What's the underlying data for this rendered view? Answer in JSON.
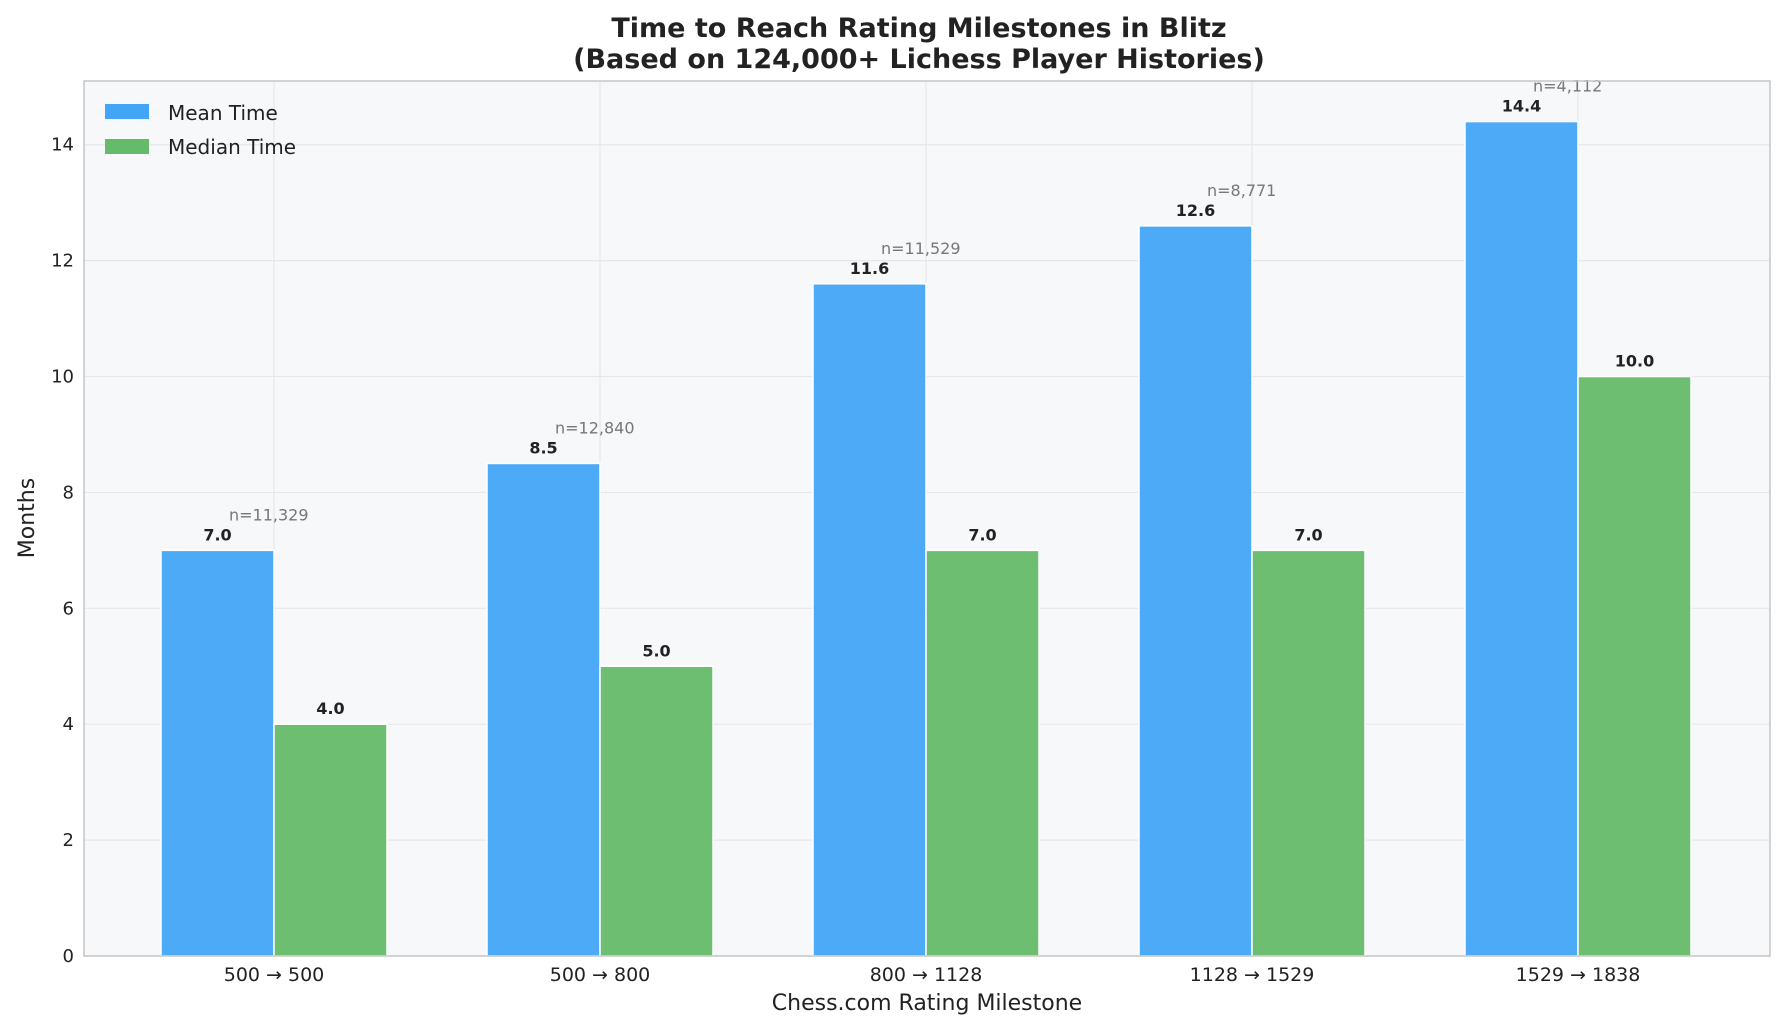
{
  "chart_data": {
    "type": "bar",
    "title_lines": [
      "Time to Reach Rating Milestones in Blitz",
      "(Based on 124,000+ Lichess Player Histories)"
    ],
    "xlabel": "Chess.com Rating Milestone",
    "ylabel": "Months",
    "categories": [
      "500 → 500",
      "500 → 800",
      "800 → 1128",
      "1128 → 1529",
      "1529 → 1838"
    ],
    "series": [
      {
        "name": "Mean Time",
        "color": "#42a5f5",
        "values": [
          7.0,
          8.5,
          11.6,
          12.6,
          14.4
        ]
      },
      {
        "name": "Median Time",
        "color": "#66bb6a",
        "values": [
          4.0,
          5.0,
          7.0,
          7.0,
          10.0
        ]
      }
    ],
    "value_labels": [
      [
        "7.0",
        "8.5",
        "11.6",
        "12.6",
        "14.4"
      ],
      [
        "4.0",
        "5.0",
        "7.0",
        "7.0",
        "10.0"
      ]
    ],
    "sample_sizes": [
      "n=11,329",
      "n=12,840",
      "n=11,529",
      "n=8,771",
      "n=4,112"
    ],
    "ylim": [
      0,
      15.1
    ],
    "yticks": [
      0,
      2,
      4,
      6,
      8,
      10,
      12,
      14
    ],
    "grid": true,
    "legend_position": "top-left",
    "background": "#f7f8fa",
    "grid_color": "#e6e8ec"
  }
}
